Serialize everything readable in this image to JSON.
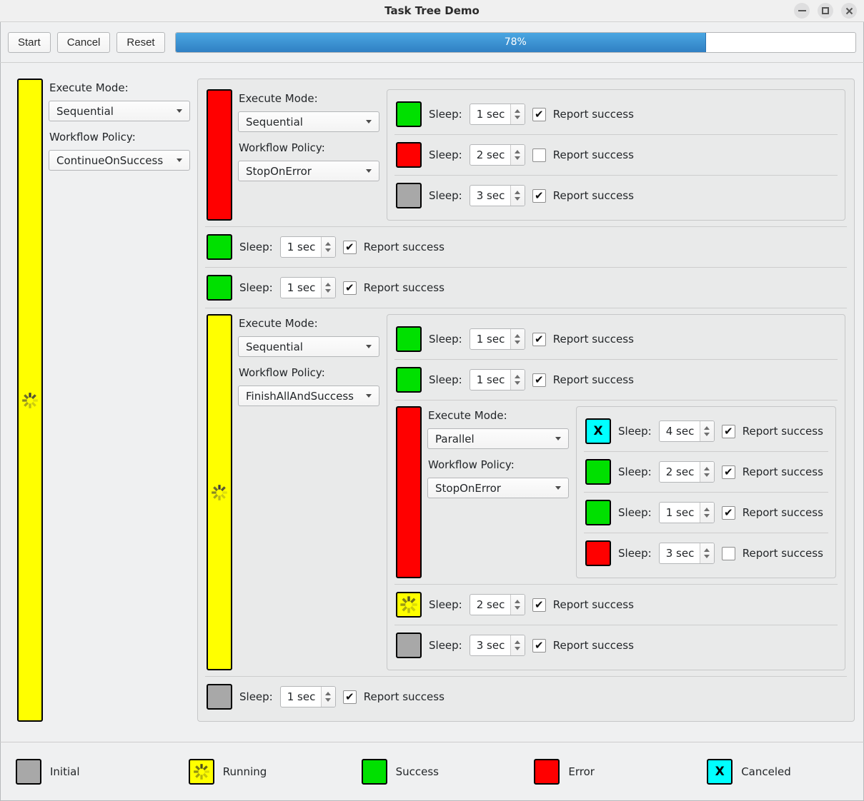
{
  "window": {
    "title": "Task Tree Demo"
  },
  "toolbar": {
    "start_label": "Start",
    "cancel_label": "Cancel",
    "reset_label": "Reset",
    "progress_text": "78%",
    "progress_percent": 78
  },
  "labels": {
    "execute_mode": "Execute Mode:",
    "workflow_policy": "Workflow Policy:",
    "sleep": "Sleep:",
    "report_success": "Report success"
  },
  "icons": {
    "canceled_glyph": "X"
  },
  "colors": {
    "initial": "#a8a8a8",
    "running": "#ffff00",
    "success": "#00e000",
    "error": "#ff0000",
    "canceled": "#00ffff",
    "progress_fill": "#3b8fd0"
  },
  "tree": {
    "type": "group",
    "status": "running",
    "execute_mode": "Sequential",
    "workflow_policy": "ContinueOnSuccess",
    "children": [
      {
        "type": "group",
        "status": "error",
        "execute_mode": "Sequential",
        "workflow_policy": "StopOnError",
        "children": [
          {
            "type": "sleep",
            "status": "success",
            "duration": "1 sec",
            "report_success": true
          },
          {
            "type": "sleep",
            "status": "error",
            "duration": "2 sec",
            "report_success": false
          },
          {
            "type": "sleep",
            "status": "initial",
            "duration": "3 sec",
            "report_success": true
          }
        ]
      },
      {
        "type": "sleep",
        "status": "success",
        "duration": "1 sec",
        "report_success": true
      },
      {
        "type": "sleep",
        "status": "success",
        "duration": "1 sec",
        "report_success": true
      },
      {
        "type": "group",
        "status": "running",
        "execute_mode": "Sequential",
        "workflow_policy": "FinishAllAndSuccess",
        "children": [
          {
            "type": "sleep",
            "status": "success",
            "duration": "1 sec",
            "report_success": true
          },
          {
            "type": "sleep",
            "status": "success",
            "duration": "1 sec",
            "report_success": true
          },
          {
            "type": "group",
            "status": "error",
            "execute_mode": "Parallel",
            "workflow_policy": "StopOnError",
            "children": [
              {
                "type": "sleep",
                "status": "canceled",
                "duration": "4 sec",
                "report_success": true
              },
              {
                "type": "sleep",
                "status": "success",
                "duration": "2 sec",
                "report_success": true
              },
              {
                "type": "sleep",
                "status": "success",
                "duration": "1 sec",
                "report_success": true
              },
              {
                "type": "sleep",
                "status": "error",
                "duration": "3 sec",
                "report_success": false
              }
            ]
          },
          {
            "type": "sleep",
            "status": "running",
            "duration": "2 sec",
            "report_success": true
          },
          {
            "type": "sleep",
            "status": "initial",
            "duration": "3 sec",
            "report_success": true
          }
        ]
      },
      {
        "type": "sleep",
        "status": "initial",
        "duration": "1 sec",
        "report_success": true
      }
    ]
  },
  "legend": {
    "items": [
      {
        "status": "initial",
        "label": "Initial"
      },
      {
        "status": "running",
        "label": "Running"
      },
      {
        "status": "success",
        "label": "Success"
      },
      {
        "status": "error",
        "label": "Error"
      },
      {
        "status": "canceled",
        "label": "Canceled"
      }
    ]
  }
}
